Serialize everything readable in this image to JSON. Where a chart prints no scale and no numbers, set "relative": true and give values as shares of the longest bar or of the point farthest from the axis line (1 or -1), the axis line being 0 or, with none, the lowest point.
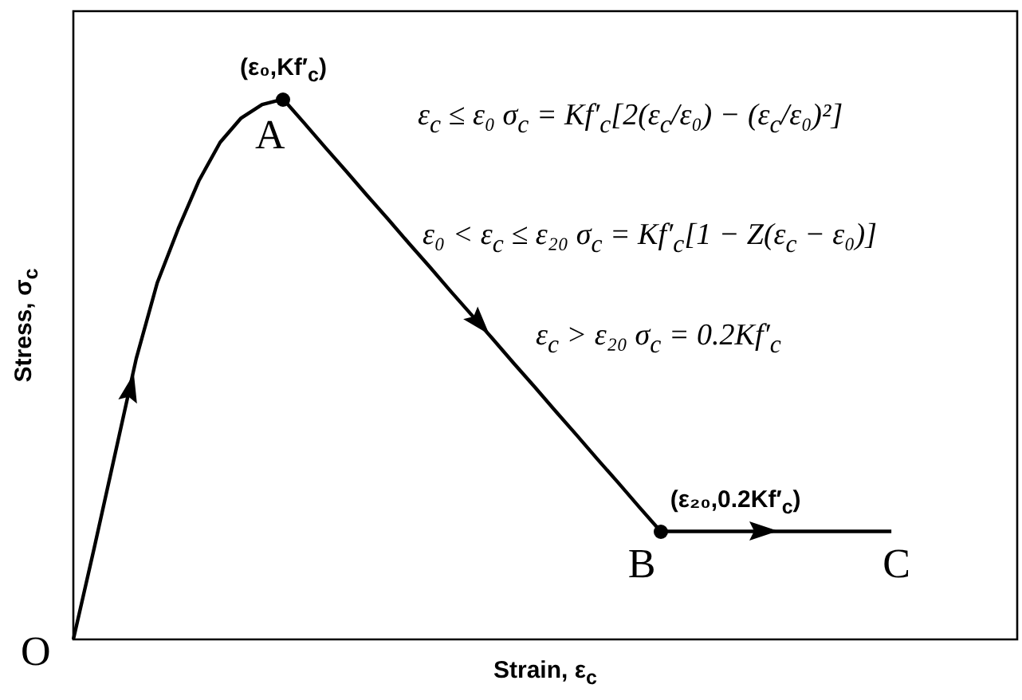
{
  "chart_data": {
    "type": "line",
    "relative": true,
    "xlabel": "Strain, ε$_{c}$",
    "ylabel": "Stress, σ$_{c}$",
    "categories": [
      null,
      null,
      null,
      null,
      null,
      null,
      null,
      null,
      null,
      null,
      null,
      null,
      null,
      null,
      null,
      null,
      null,
      null,
      null,
      null,
      null,
      null,
      null,
      null,
      null,
      null,
      null,
      null,
      null,
      null,
      null,
      null,
      null,
      null,
      null,
      null,
      null,
      null,
      null,
      null,
      null,
      null,
      null,
      null,
      null,
      null
    ],
    "series": [
      {
        "color": "#000000",
        "values": [
          0,
          0.17,
          0.345,
          0.52,
          0.66,
          0.76,
          0.85,
          0.92,
          0.965,
          0.99,
          1,
          0.956,
          0.911,
          0.867,
          0.822,
          0.778,
          0.733,
          0.689,
          0.644,
          0.6,
          0.556,
          0.511,
          0.467,
          0.422,
          0.378,
          0.333,
          0.289,
          0.244,
          0.2,
          0.2,
          0.2,
          0.2,
          0.2,
          0.2,
          0.2,
          0.2,
          0.2,
          0.2,
          0.2,
          0.2,
          null,
          null,
          null,
          null,
          null,
          null
        ]
      }
    ],
    "line_style": "solid",
    "annotations": [
      "O",
      "A",
      "(ε₀,Kf′$_{c}$)",
      "B",
      "(ε₂₀,0.2Kf′$_{c}$)",
      "C",
      "ε$_{c}$ ≤ ε₀  σ$_{c}$ = Kf′$_{c}$[2(ε$_{c}$/ε₀) − (ε$_{c}$/ε₀)²]",
      "ε₀ < ε$_{c}$ ≤ ε₂₀  σ$_{c}$ = Kf′$_{c}$[1 − Z(ε$_{c}$ − ε₀)]",
      "ε$_{c}$ > ε₂₀  σ$_{c}$ = 0.2Kf′$_{c}$"
    ]
  }
}
